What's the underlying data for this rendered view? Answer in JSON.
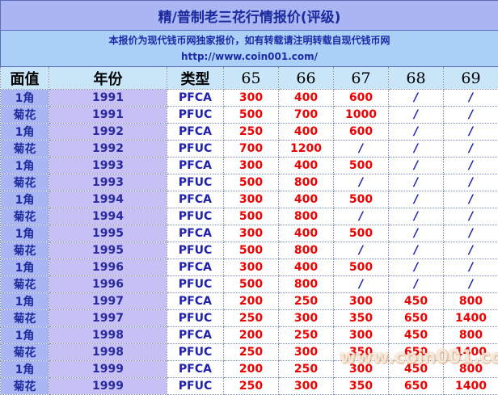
{
  "title": "精/普制老三花行情报价(评级)",
  "notice": {
    "line1": "本报价为现代钱币网独家报价，如有转载请注明转载自现代钱币网",
    "line2": "http://www.coin001.com/"
  },
  "headers": {
    "denomination": "面值",
    "year": "年份",
    "type": "类型",
    "grades": [
      "65",
      "66",
      "67",
      "68",
      "69"
    ]
  },
  "rows": [
    {
      "denom": "1角",
      "year": "1991",
      "type": "PFCA",
      "prices": [
        "300",
        "400",
        "600",
        "/",
        "/"
      ]
    },
    {
      "denom": "菊花",
      "year": "1991",
      "type": "PFUC",
      "prices": [
        "500",
        "700",
        "1000",
        "/",
        "/"
      ]
    },
    {
      "denom": "1角",
      "year": "1992",
      "type": "PFCA",
      "prices": [
        "250",
        "400",
        "600",
        "/",
        "/"
      ]
    },
    {
      "denom": "菊花",
      "year": "1992",
      "type": "PFUC",
      "prices": [
        "700",
        "1200",
        "/",
        "/",
        "/"
      ]
    },
    {
      "denom": "1角",
      "year": "1993",
      "type": "PFCA",
      "prices": [
        "300",
        "400",
        "500",
        "/",
        "/"
      ]
    },
    {
      "denom": "菊花",
      "year": "1993",
      "type": "PFUC",
      "prices": [
        "500",
        "800",
        "/",
        "/",
        "/"
      ]
    },
    {
      "denom": "1角",
      "year": "1994",
      "type": "PFCA",
      "prices": [
        "300",
        "400",
        "500",
        "/",
        "/"
      ]
    },
    {
      "denom": "菊花",
      "year": "1994",
      "type": "PFUC",
      "prices": [
        "500",
        "800",
        "/",
        "/",
        "/"
      ]
    },
    {
      "denom": "1角",
      "year": "1995",
      "type": "PFCA",
      "prices": [
        "300",
        "400",
        "500",
        "/",
        "/"
      ]
    },
    {
      "denom": "菊花",
      "year": "1995",
      "type": "PFUC",
      "prices": [
        "500",
        "800",
        "/",
        "/",
        "/"
      ]
    },
    {
      "denom": "1角",
      "year": "1996",
      "type": "PFCA",
      "prices": [
        "300",
        "400",
        "500",
        "/",
        "/"
      ]
    },
    {
      "denom": "菊花",
      "year": "1996",
      "type": "PFUC",
      "prices": [
        "500",
        "800",
        "/",
        "/",
        "/"
      ]
    },
    {
      "denom": "1角",
      "year": "1997",
      "type": "PFCA",
      "prices": [
        "200",
        "250",
        "300",
        "450",
        "800"
      ]
    },
    {
      "denom": "菊花",
      "year": "1997",
      "type": "PFUC",
      "prices": [
        "250",
        "300",
        "350",
        "650",
        "1400"
      ]
    },
    {
      "denom": "1角",
      "year": "1998",
      "type": "PFCA",
      "prices": [
        "200",
        "250",
        "300",
        "450",
        "800"
      ]
    },
    {
      "denom": "菊花",
      "year": "1998",
      "type": "PFUC",
      "prices": [
        "250",
        "300",
        "350",
        "650",
        "1400"
      ]
    },
    {
      "denom": "1角",
      "year": "1999",
      "type": "PFCA",
      "prices": [
        "200",
        "250",
        "300",
        "450",
        "800"
      ]
    },
    {
      "denom": "菊花",
      "year": "1999",
      "type": "PFUC",
      "prices": [
        "250",
        "300",
        "350",
        "650",
        "1400"
      ]
    }
  ],
  "watermark": "www.coin001.com",
  "colors": {
    "title_bg": "#aab6f3",
    "notice_bg": "#aad0f7",
    "header_bg": "#c8e6f7",
    "denom_bg": "#aab6f3",
    "year_bg": "#c7c0f4",
    "price_red": "#ee0000",
    "text_blue": "#1c2a9c"
  }
}
